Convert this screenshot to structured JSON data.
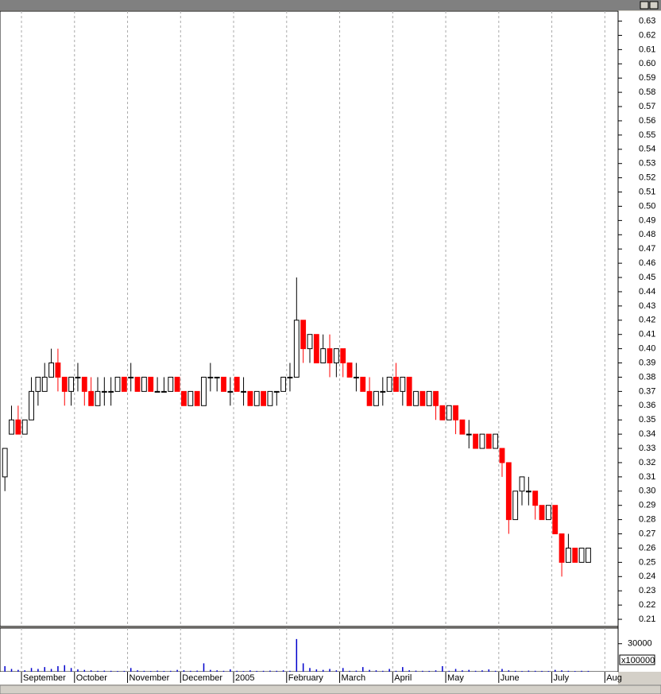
{
  "chart_data": {
    "type": "candlestick",
    "categories": [
      null,
      null,
      null,
      "September",
      null,
      null,
      null,
      null,
      null,
      null,
      null,
      "October",
      null,
      null,
      null,
      null,
      null,
      null,
      null,
      "November",
      null,
      null,
      null,
      null,
      null,
      null,
      null,
      "December",
      null,
      null,
      null,
      null,
      null,
      null,
      null,
      "2005",
      null,
      null,
      null,
      null,
      null,
      null,
      null,
      "February",
      null,
      null,
      null,
      null,
      null,
      null,
      null,
      "March",
      null,
      null,
      null,
      null,
      null,
      null,
      null,
      "April",
      null,
      null,
      null,
      null,
      null,
      null,
      null,
      "May",
      null,
      null,
      null,
      null,
      null,
      null,
      null,
      "June",
      null,
      null,
      null,
      null,
      null,
      null,
      null,
      "July",
      null,
      null,
      null,
      null,
      null,
      null,
      null,
      "Aug",
      null
    ],
    "open": [
      0.31,
      0.34,
      0.35,
      0.34,
      0.35,
      0.37,
      0.37,
      0.38,
      0.39,
      0.38,
      0.37,
      0.38,
      0.38,
      0.37,
      0.36,
      0.37,
      0.37,
      0.37,
      0.38,
      0.38,
      0.38,
      0.37,
      0.38,
      0.37,
      0.37,
      0.37,
      0.38,
      0.37,
      0.36,
      0.37,
      0.36,
      0.38,
      0.38,
      0.38,
      0.37,
      0.38,
      0.37,
      0.37,
      0.36,
      0.37,
      0.36,
      0.37,
      0.37,
      0.38,
      0.38,
      0.42,
      0.4,
      0.41,
      0.39,
      0.4,
      0.39,
      0.4,
      0.39,
      0.38,
      0.38,
      0.37,
      0.36,
      0.37,
      0.37,
      0.38,
      0.37,
      0.38,
      0.36,
      0.37,
      0.36,
      0.37,
      0.36,
      0.35,
      0.36,
      0.35,
      0.34,
      0.34,
      0.33,
      0.34,
      0.33,
      0.33,
      0.32,
      0.28,
      0.3,
      0.3,
      0.3,
      0.29,
      0.28,
      0.29,
      0.27,
      0.25,
      0.26,
      0.25,
      0.25,
      null,
      null,
      null,
      null
    ],
    "high": [
      0.33,
      0.36,
      0.36,
      0.35,
      0.38,
      0.38,
      0.39,
      0.4,
      0.4,
      0.38,
      0.38,
      0.39,
      0.38,
      0.38,
      0.38,
      0.38,
      0.38,
      0.38,
      0.38,
      0.39,
      0.38,
      0.38,
      0.38,
      0.38,
      0.38,
      0.38,
      0.38,
      0.37,
      0.37,
      0.37,
      0.38,
      0.39,
      0.38,
      0.38,
      0.38,
      0.38,
      0.38,
      0.37,
      0.37,
      0.37,
      0.37,
      0.37,
      0.38,
      0.39,
      0.45,
      0.42,
      0.41,
      0.41,
      0.41,
      0.41,
      0.4,
      0.4,
      0.39,
      0.39,
      0.38,
      0.38,
      0.37,
      0.38,
      0.38,
      0.39,
      0.38,
      0.38,
      0.37,
      0.37,
      0.37,
      0.37,
      0.36,
      0.36,
      0.36,
      0.35,
      0.35,
      0.34,
      0.34,
      0.34,
      0.34,
      0.33,
      0.32,
      0.3,
      0.31,
      0.31,
      0.3,
      0.29,
      0.29,
      0.29,
      0.27,
      0.27,
      0.26,
      0.26,
      0.26,
      null,
      null,
      null,
      null
    ],
    "low": [
      0.3,
      0.34,
      0.34,
      0.34,
      0.35,
      0.36,
      0.37,
      0.38,
      0.37,
      0.36,
      0.36,
      0.37,
      0.36,
      0.36,
      0.36,
      0.36,
      0.36,
      0.37,
      0.37,
      0.37,
      0.37,
      0.37,
      0.37,
      0.37,
      0.37,
      0.37,
      0.37,
      0.36,
      0.36,
      0.36,
      0.36,
      0.37,
      0.37,
      0.37,
      0.36,
      0.37,
      0.36,
      0.36,
      0.36,
      0.36,
      0.36,
      0.36,
      0.37,
      0.37,
      0.38,
      0.39,
      0.39,
      0.39,
      0.39,
      0.38,
      0.38,
      0.38,
      0.38,
      0.37,
      0.37,
      0.36,
      0.36,
      0.36,
      0.37,
      0.37,
      0.36,
      0.36,
      0.36,
      0.36,
      0.36,
      0.35,
      0.35,
      0.35,
      0.34,
      0.34,
      0.33,
      0.33,
      0.33,
      0.33,
      0.33,
      0.31,
      0.27,
      0.28,
      0.29,
      0.29,
      0.28,
      0.28,
      0.28,
      0.27,
      0.24,
      0.25,
      0.25,
      0.25,
      0.25,
      null,
      null,
      null,
      null
    ],
    "close": [
      0.33,
      0.35,
      0.34,
      0.35,
      0.37,
      0.38,
      0.38,
      0.39,
      0.38,
      0.37,
      0.38,
      0.38,
      0.37,
      0.36,
      0.37,
      0.37,
      0.37,
      0.38,
      0.37,
      0.38,
      0.37,
      0.38,
      0.37,
      0.37,
      0.37,
      0.38,
      0.37,
      0.36,
      0.37,
      0.36,
      0.38,
      0.38,
      0.38,
      0.37,
      0.37,
      0.37,
      0.37,
      0.36,
      0.37,
      0.36,
      0.37,
      0.37,
      0.38,
      0.38,
      0.42,
      0.4,
      0.41,
      0.39,
      0.4,
      0.39,
      0.4,
      0.39,
      0.38,
      0.38,
      0.37,
      0.36,
      0.37,
      0.37,
      0.38,
      0.37,
      0.38,
      0.36,
      0.37,
      0.36,
      0.37,
      0.36,
      0.35,
      0.36,
      0.35,
      0.34,
      0.34,
      0.33,
      0.34,
      0.33,
      0.34,
      0.32,
      0.28,
      0.3,
      0.31,
      0.3,
      0.29,
      0.28,
      0.29,
      0.27,
      0.25,
      0.26,
      0.25,
      0.26,
      0.26,
      null,
      null,
      null,
      null
    ],
    "volume": [
      6000,
      3000,
      2000,
      1500,
      4000,
      3000,
      5000,
      3000,
      6000,
      7000,
      4000,
      2500,
      2000,
      1500,
      1000,
      1200,
      1000,
      800,
      900,
      4000,
      1500,
      1000,
      800,
      1200,
      900,
      1000,
      2000,
      1500,
      1000,
      1200,
      9000,
      2000,
      1500,
      1000,
      2500,
      1000,
      800,
      1500,
      900,
      1000,
      1200,
      1000,
      1500,
      1000,
      35000,
      9000,
      4000,
      2500,
      2000,
      3000,
      1500,
      4000,
      1000,
      1200,
      5000,
      2000,
      1500,
      1000,
      3000,
      1000,
      5000,
      1500,
      1200,
      1000,
      900,
      1500,
      6000,
      1000,
      3000,
      1500,
      2000,
      1000,
      1500,
      2500,
      1000,
      3000,
      1500,
      1000,
      800,
      1200,
      1000,
      900,
      800,
      2000,
      1500,
      1000,
      800,
      1000,
      900,
      null,
      null,
      null,
      null
    ],
    "ylim": [
      0.205,
      0.637
    ],
    "yticks": [
      0.21,
      0.22,
      0.23,
      0.24,
      0.25,
      0.26,
      0.27,
      0.28,
      0.29,
      {
        "value": 0.3,
        "label": "0.30"
      },
      0.31,
      0.32,
      0.33,
      0.34,
      0.35,
      0.36,
      0.37,
      0.38,
      0.39,
      {
        "value": 0.4,
        "label": "0.40"
      },
      0.41,
      0.42,
      0.43,
      0.44,
      0.45,
      0.46,
      0.47,
      0.48,
      0.49,
      {
        "value": 0.5,
        "label": "0.50"
      },
      0.51,
      0.52,
      0.53,
      0.54,
      0.55,
      0.56,
      0.57,
      0.58,
      0.59,
      {
        "value": 0.6,
        "label": "0.60"
      },
      0.61,
      0.62,
      0.63
    ],
    "volume_ylim": [
      0,
      46800
    ],
    "volume_yticks": [
      30000
    ],
    "volume_unit": "x100000",
    "up_color": "#000000",
    "down_color": "#ff0000",
    "volume_color": "#0000cc",
    "grid": true
  }
}
